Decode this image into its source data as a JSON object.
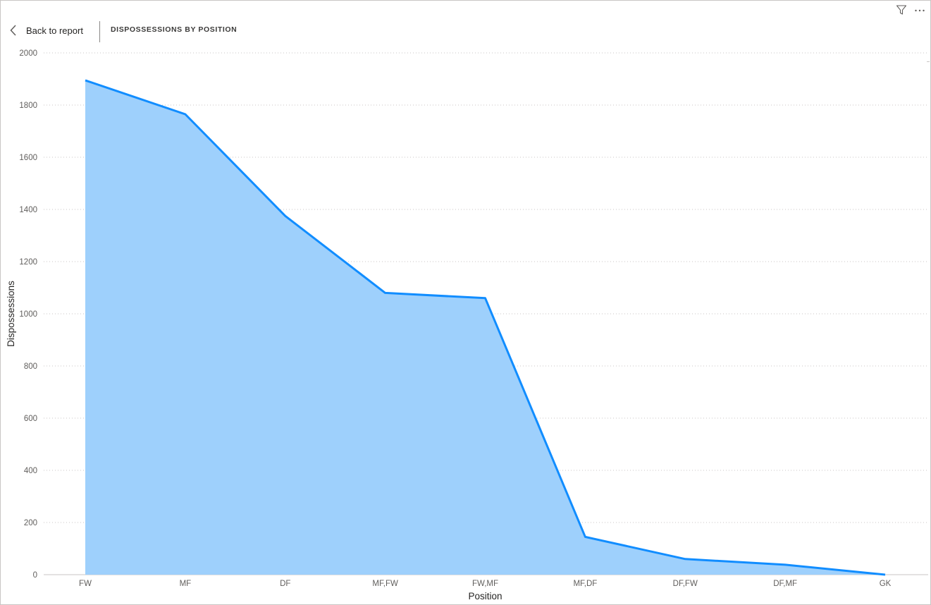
{
  "header": {
    "back_label": "Back to report",
    "visual_title": "DISPOSSESSIONS BY POSITION"
  },
  "icons": {
    "back": "chevron-left-icon",
    "filter": "filter-icon",
    "more": "more-options-icon"
  },
  "colors": {
    "line": "#118DFF",
    "area": "#9ED0FC",
    "grid": "#C8C6C4",
    "text": "#605E5C"
  },
  "chart_data": {
    "type": "area",
    "categories": [
      "FW",
      "MF",
      "DF",
      "MF,FW",
      "FW,MF",
      "MF,DF",
      "DF,FW",
      "DF,MF",
      "GK"
    ],
    "series": [
      {
        "values": [
          1895,
          1765,
          1375,
          1080,
          1060,
          145,
          60,
          38,
          0
        ]
      }
    ],
    "xlabel": "Position",
    "ylabel": "Dispossessions",
    "ylim": [
      0,
      2000
    ],
    "yticks": [
      0,
      200,
      400,
      600,
      800,
      1000,
      1200,
      1400,
      1600,
      1800,
      2000
    ],
    "grid": true,
    "legend": "none"
  }
}
